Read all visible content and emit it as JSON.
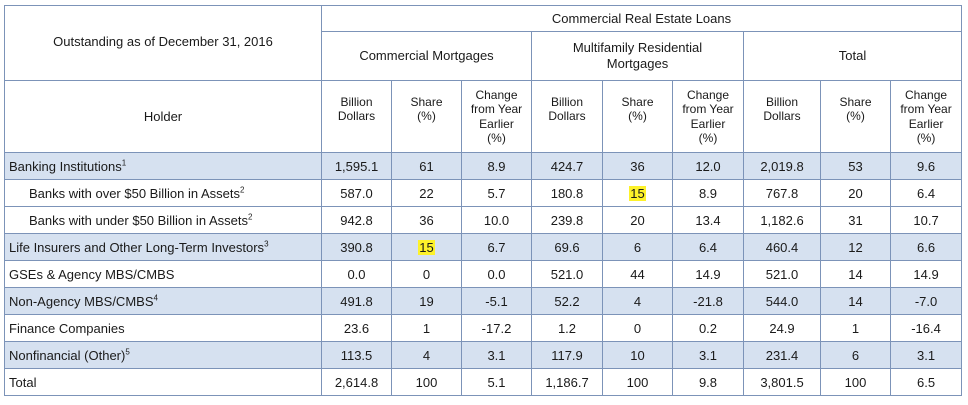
{
  "header": {
    "as_of": "Outstanding as of December 31, 2016",
    "group_title": "Commercial Real Estate Loans",
    "holder_label": "Holder",
    "groups": [
      {
        "label_line1": "Commercial Mortgages",
        "label_line2": ""
      },
      {
        "label_line1": "Multifamily Residential",
        "label_line2": "Mortgages"
      },
      {
        "label_line1": "Total",
        "label_line2": ""
      }
    ],
    "subcols": [
      {
        "l1": "Billion",
        "l2": "Dollars",
        "l3": "",
        "l4": ""
      },
      {
        "l1": "Share",
        "l2": "(%)",
        "l3": "",
        "l4": ""
      },
      {
        "l1": "Change",
        "l2": "from Year",
        "l3": "Earlier",
        "l4": "(%)"
      }
    ]
  },
  "rows": [
    {
      "label": "Banking Institutions",
      "sup": "1",
      "indent": false,
      "shaded": true,
      "values": [
        "1,595.1",
        "61",
        "8.9",
        "424.7",
        "36",
        "12.0",
        "2,019.8",
        "53",
        "9.6"
      ],
      "highlight": []
    },
    {
      "label": "Banks with over $50 Billion in Assets",
      "sup": "2",
      "indent": true,
      "shaded": false,
      "values": [
        "587.0",
        "22",
        "5.7",
        "180.8",
        "15",
        "8.9",
        "767.8",
        "20",
        "6.4"
      ],
      "highlight": [
        4
      ]
    },
    {
      "label": "Banks with under $50 Billion in Assets",
      "sup": "2",
      "indent": true,
      "shaded": false,
      "values": [
        "942.8",
        "36",
        "10.0",
        "239.8",
        "20",
        "13.4",
        "1,182.6",
        "31",
        "10.7"
      ],
      "highlight": []
    },
    {
      "label": "Life Insurers and Other Long-Term Investors",
      "sup": "3",
      "indent": false,
      "shaded": true,
      "values": [
        "390.8",
        "15",
        "6.7",
        "69.6",
        "6",
        "6.4",
        "460.4",
        "12",
        "6.6"
      ],
      "highlight": [
        1
      ]
    },
    {
      "label": "GSEs & Agency MBS/CMBS",
      "sup": "",
      "indent": false,
      "shaded": false,
      "values": [
        "0.0",
        "0",
        "0.0",
        "521.0",
        "44",
        "14.9",
        "521.0",
        "14",
        "14.9"
      ],
      "highlight": []
    },
    {
      "label": "Non-Agency MBS/CMBS",
      "sup": "4",
      "indent": false,
      "shaded": true,
      "values": [
        "491.8",
        "19",
        "-5.1",
        "52.2",
        "4",
        "-21.8",
        "544.0",
        "14",
        "-7.0"
      ],
      "highlight": []
    },
    {
      "label": "Finance Companies",
      "sup": "",
      "indent": false,
      "shaded": false,
      "values": [
        "23.6",
        "1",
        "-17.2",
        "1.2",
        "0",
        "0.2",
        "24.9",
        "1",
        "-16.4"
      ],
      "highlight": []
    },
    {
      "label": "Nonfinancial (Other)",
      "sup": "5",
      "indent": false,
      "shaded": true,
      "values": [
        "113.5",
        "4",
        "3.1",
        "117.9",
        "10",
        "3.1",
        "231.4",
        "6",
        "3.1"
      ],
      "highlight": []
    },
    {
      "label": "Total",
      "sup": "",
      "indent": false,
      "shaded": false,
      "values": [
        "2,614.8",
        "100",
        "5.1",
        "1,186.7",
        "100",
        "9.8",
        "3,801.5",
        "100",
        "6.5"
      ],
      "highlight": []
    }
  ],
  "colors": {
    "border": "#7c93b8",
    "shade": "#d6e1f0",
    "highlight": "#fdf22a"
  }
}
